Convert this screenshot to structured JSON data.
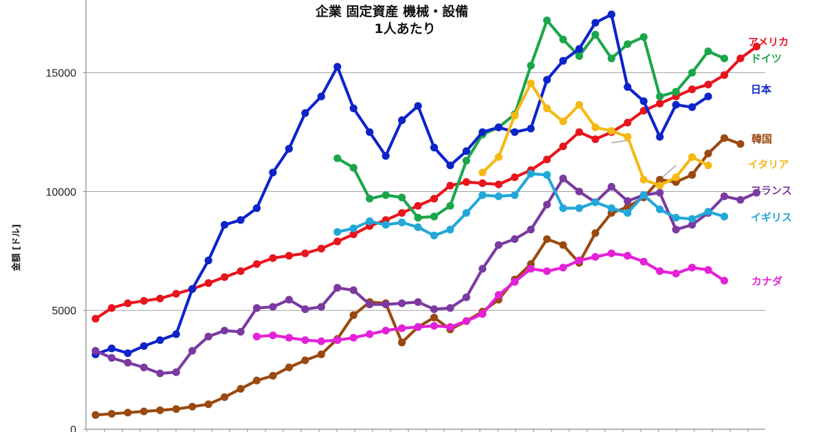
{
  "chart_data": {
    "type": "line",
    "title": [
      "企業 固定資産 機械・設備",
      "1人あたり"
    ],
    "ylabel": "金額 [ドル]",
    "xlabel": "",
    "ylim": [
      0,
      18000
    ],
    "yticks": [
      0,
      5000,
      10000,
      15000
    ],
    "ytick_labels": [
      "0",
      "5000",
      "10000",
      "15000"
    ],
    "grid": "horizontal",
    "legend_placement": "right",
    "x_start": 0,
    "x_end": 38,
    "series": [
      {
        "name": "アメリカ",
        "color": "#e8141e",
        "start": 0,
        "values": [
          4650,
          5100,
          5300,
          5400,
          5500,
          5700,
          5900,
          6150,
          6400,
          6650,
          6950,
          7200,
          7300,
          7400,
          7600,
          7900,
          8200,
          8550,
          8800,
          9100,
          9400,
          9700,
          10250,
          10400,
          10350,
          10300,
          10600,
          10900,
          11350,
          11900,
          12500,
          12200,
          12500,
          12900,
          13400,
          13700,
          14000,
          14300,
          14500,
          14900,
          15600,
          16100
        ]
      },
      {
        "name": "ドイツ",
        "color": "#1aa64a",
        "start": 15,
        "values": [
          11400,
          11000,
          9700,
          9850,
          9750,
          8900,
          8950,
          9400,
          11300,
          12400,
          12700,
          13250,
          15300,
          17200,
          16400,
          15700,
          16600,
          15600,
          16200,
          16500,
          14000,
          14200,
          15000,
          15900,
          15600
        ]
      },
      {
        "name": "日本",
        "color": "#0d24c9",
        "start": 0,
        "values": [
          3150,
          3400,
          3200,
          3500,
          3750,
          4000,
          5900,
          7100,
          8600,
          8800,
          9300,
          10800,
          11800,
          13300,
          14000,
          15250,
          13500,
          12500,
          11500,
          13000,
          13600,
          11850,
          11100,
          11700,
          12500,
          12700,
          12500,
          12650,
          14700,
          15500,
          16000,
          17100,
          17450,
          14400,
          13800,
          12300,
          13650,
          13550,
          14000
        ]
      },
      {
        "name": "韓国",
        "color": "#9a4a10",
        "start": 0,
        "values": [
          600,
          650,
          700,
          750,
          800,
          850,
          950,
          1050,
          1350,
          1700,
          2050,
          2250,
          2600,
          2900,
          3150,
          3800,
          4800,
          5350,
          5300,
          3650,
          4300,
          4700,
          4200,
          4550,
          4950,
          5450,
          6300,
          6950,
          8000,
          7750,
          7000,
          8250,
          9100,
          9350,
          9750,
          10500,
          10400,
          10700,
          11600,
          12250,
          12000
        ]
      },
      {
        "name": "イタリア",
        "color": "#f5b815",
        "start": 24,
        "values": [
          10800,
          11450,
          13200,
          14550,
          13500,
          12950,
          13650,
          12700,
          12550,
          12300,
          10500,
          10250,
          10600,
          11450,
          11100
        ]
      },
      {
        "name": "フランス",
        "color": "#7b3aa0",
        "start": 0,
        "values": [
          3300,
          3000,
          2800,
          2600,
          2350,
          2400,
          3300,
          3900,
          4150,
          4100,
          5100,
          5150,
          5450,
          5050,
          5150,
          5950,
          5850,
          5250,
          5250,
          5300,
          5350,
          5050,
          5100,
          5550,
          6750,
          7750,
          8000,
          8400,
          9450,
          10550,
          10000,
          9550,
          10200,
          9600,
          9850,
          9950,
          8400,
          8600,
          9100,
          9800,
          9650,
          9950
        ]
      },
      {
        "name": "イギリス",
        "color": "#22a8d8",
        "start": 15,
        "values": [
          8300,
          8450,
          8750,
          8600,
          8700,
          8500,
          8150,
          8400,
          9100,
          9850,
          9800,
          9850,
          10750,
          10700,
          9300,
          9300,
          9550,
          9300,
          9100,
          9850,
          9250,
          8900,
          8850,
          9150,
          8950
        ]
      },
      {
        "name": "カナダ",
        "color": "#e421d8",
        "start": 10,
        "values": [
          3900,
          3950,
          3850,
          3750,
          3700,
          3750,
          3850,
          4000,
          4150,
          4250,
          4300,
          4350,
          4300,
          4550,
          4850,
          5650,
          6200,
          6750,
          6650,
          6800,
          7100,
          7250,
          7400,
          7300,
          7050,
          6650,
          6550,
          6800,
          6700,
          6250
        ]
      }
    ],
    "extra_lines": [
      {
        "color": "#b8b8b8",
        "start": 32,
        "values": [
          12050,
          12150
        ]
      },
      {
        "color": "#b8b8b8",
        "start": 35,
        "values": [
          10500,
          11100
        ]
      }
    ]
  },
  "legend": {
    "labels": [
      {
        "text": "アメリカ",
        "color": "#e8141e"
      },
      {
        "text": "ドイツ",
        "color": "#1aa64a"
      },
      {
        "text": "日本",
        "color": "#0d24c9"
      },
      {
        "text": "韓国",
        "color": "#9a4a10"
      },
      {
        "text": "イタリア",
        "color": "#f5b815"
      },
      {
        "text": "フランス",
        "color": "#7b3aa0"
      },
      {
        "text": "イギリス",
        "color": "#22a8d8"
      },
      {
        "text": "カナダ",
        "color": "#e421d8"
      }
    ]
  }
}
